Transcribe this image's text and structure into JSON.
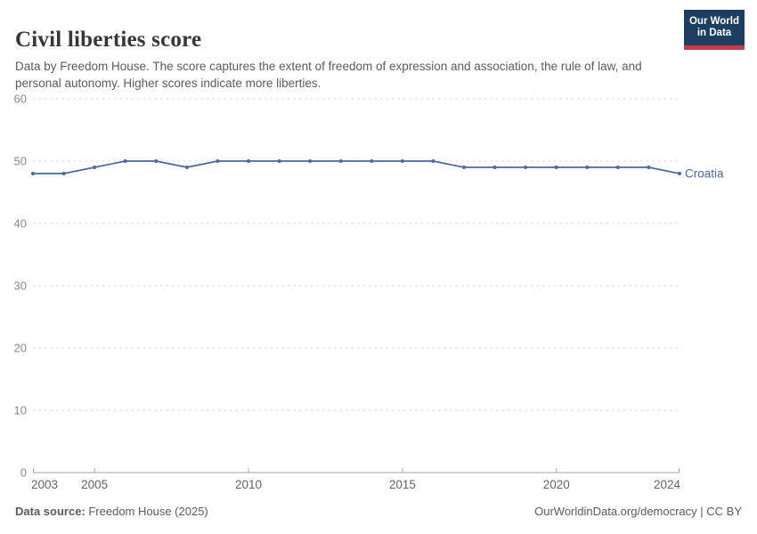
{
  "header": {
    "title": "Civil liberties score",
    "subtitle": "Data by Freedom House. The score captures the extent of freedom of expression and association, the rule of law, and personal autonomy. Higher scores indicate more liberties."
  },
  "logo": {
    "line1": "Our World",
    "line2": "in Data",
    "bg_color": "#1d3d63",
    "stripe_color": "#c43c4e",
    "text_color": "#ffffff"
  },
  "chart_data": {
    "type": "line",
    "title": "Civil liberties score",
    "x": [
      2003,
      2004,
      2005,
      2006,
      2007,
      2008,
      2009,
      2010,
      2011,
      2012,
      2013,
      2014,
      2015,
      2016,
      2017,
      2018,
      2019,
      2020,
      2021,
      2022,
      2023,
      2024
    ],
    "series": [
      {
        "name": "Croatia",
        "color": "#4a69a2",
        "values": [
          48,
          48,
          49,
          50,
          50,
          49,
          50,
          50,
          50,
          50,
          50,
          50,
          50,
          50,
          49,
          49,
          49,
          49,
          49,
          49,
          49,
          48
        ]
      }
    ],
    "xlabel": "",
    "ylabel": "",
    "ylim": [
      0,
      60
    ],
    "yticks": [
      0,
      10,
      20,
      30,
      40,
      50,
      60
    ],
    "xticks": [
      2003,
      2005,
      2010,
      2015,
      2020,
      2024
    ],
    "grid": "horizontal-dashed",
    "grid_color": "#dadada",
    "axis_line_color": "#a6a6a6",
    "ytick_label_color": "#898989",
    "xtick_label_color": "#636363",
    "legend": "inline-end-label"
  },
  "footer": {
    "datasource_label": "Data source:",
    "datasource_value": " Freedom House (2025)",
    "credit": "OurWorldinData.org/democracy | CC BY"
  }
}
